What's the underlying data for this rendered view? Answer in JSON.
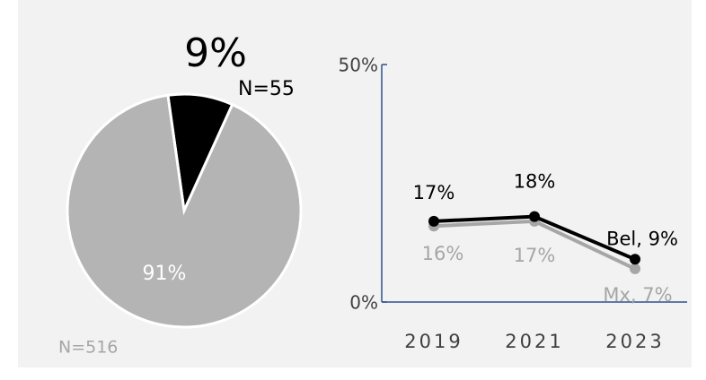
{
  "chart_data": [
    {
      "type": "pie",
      "values": [
        9,
        91
      ],
      "value_labels": [
        "9%",
        "91%"
      ],
      "annotations": [
        "N=55",
        "N=516"
      ],
      "colors": [
        "#000000",
        "#b4b4b4"
      ]
    },
    {
      "type": "line",
      "categories": [
        "2019",
        "2021",
        "2023"
      ],
      "series": [
        {
          "color": "#000000",
          "values": [
            17,
            18,
            9
          ],
          "value_labels": [
            "17%",
            "18%",
            "Bel, 9%"
          ]
        },
        {
          "color": "#a6a6a6",
          "values": [
            16,
            17,
            7
          ],
          "value_labels": [
            "16%",
            "17%",
            "Mx, 7%"
          ]
        }
      ],
      "ylim": [
        0,
        50
      ],
      "yticks": [
        {
          "value": 0,
          "label": "0%"
        },
        {
          "value": 50,
          "label": "50%"
        }
      ]
    }
  ]
}
